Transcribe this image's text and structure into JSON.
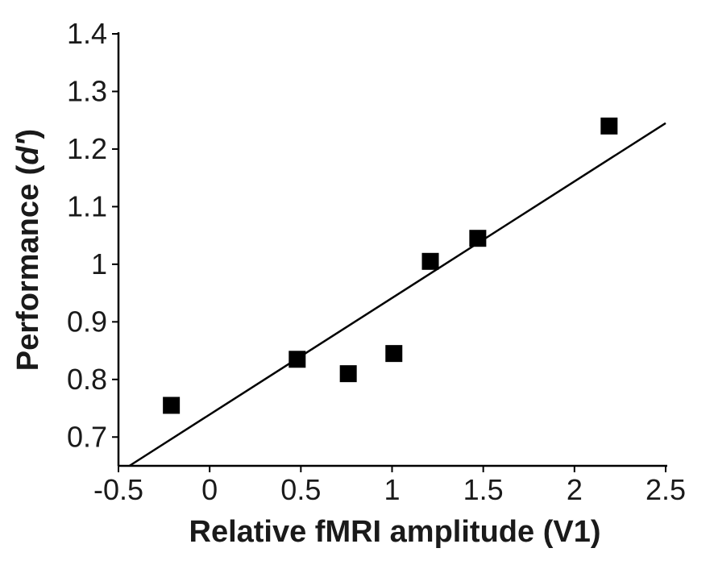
{
  "chart_data": {
    "type": "scatter",
    "title": "",
    "xlabel": "Relative fMRI amplitude (V1)",
    "ylabel_prefix": "Performance (",
    "ylabel_italic": "d'",
    "ylabel_suffix": ")",
    "xlim": [
      -0.5,
      2.5
    ],
    "ylim": [
      0.65,
      1.4
    ],
    "xticks": [
      -0.5,
      0,
      0.5,
      1,
      1.5,
      2,
      2.5
    ],
    "xtick_labels": [
      "-0.5",
      "0",
      "0.5",
      "1",
      "1.5",
      "2",
      "2.5"
    ],
    "yticks": [
      0.7,
      0.8,
      0.9,
      1.0,
      1.1,
      1.2,
      1.3,
      1.4
    ],
    "ytick_labels": [
      "0.7",
      "0.8",
      "0.9",
      "1",
      "1.1",
      "1.2",
      "1.3",
      "1.4"
    ],
    "grid": false,
    "series": [
      {
        "marker": "square",
        "color": "#000000",
        "points": [
          {
            "x": -0.21,
            "y": 0.755
          },
          {
            "x": 0.48,
            "y": 0.835
          },
          {
            "x": 0.76,
            "y": 0.81
          },
          {
            "x": 1.01,
            "y": 0.845
          },
          {
            "x": 1.21,
            "y": 1.005
          },
          {
            "x": 1.47,
            "y": 1.045
          },
          {
            "x": 2.19,
            "y": 1.24
          }
        ]
      }
    ],
    "fit_line": {
      "x": [
        -0.44,
        2.5
      ],
      "y": [
        0.65,
        1.245
      ],
      "color": "#000000"
    }
  }
}
